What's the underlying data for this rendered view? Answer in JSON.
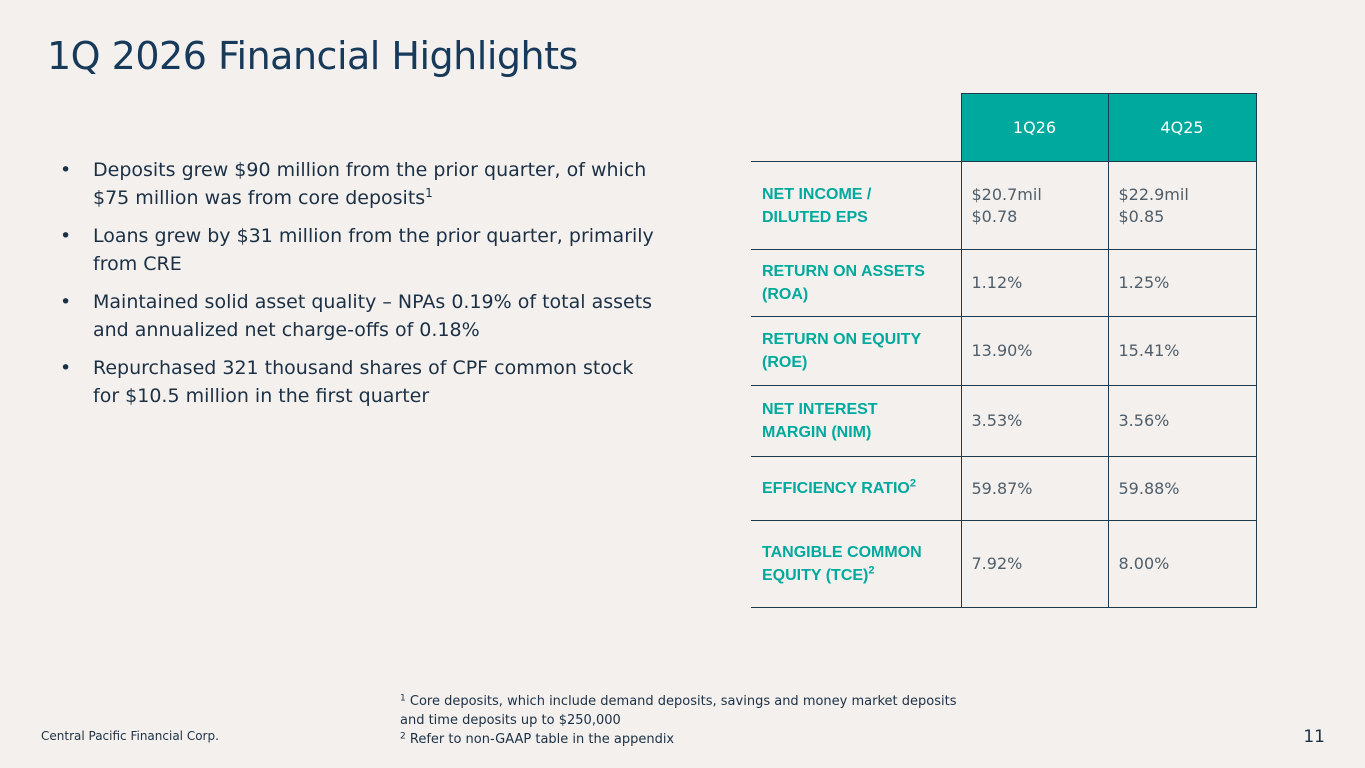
{
  "title": "1Q 2026 Financial Highlights",
  "bullets": [
    {
      "text": "Deposits grew $90 million from the prior quarter, of which $75 million was from core deposits",
      "sup": "1"
    },
    {
      "text": "Loans grew by $31 million from the prior quarter, primarily from CRE",
      "sup": ""
    },
    {
      "text": "Maintained solid asset quality – NPAs 0.19% of total assets and annualized net charge-offs of 0.18%",
      "sup": ""
    },
    {
      "text": "Repurchased 321 thousand shares of CPF common stock for $10.5 million in the first quarter",
      "sup": ""
    }
  ],
  "bullet_symbol": "•",
  "table": {
    "headers": [
      "1Q26",
      "4Q25"
    ],
    "rows": [
      {
        "label_line1": "NET INCOME /",
        "label_line2": "DILUTED EPS",
        "label_sup": "",
        "v1_line1": "$20.7mil",
        "v1_line2": "$0.78",
        "v2_line1": "$22.9mil",
        "v2_line2": "$0.85"
      },
      {
        "label_line1": "RETURN ON ASSETS",
        "label_line2": "(ROA)",
        "label_sup": "",
        "v1_line1": "1.12%",
        "v1_line2": "",
        "v2_line1": "1.25%",
        "v2_line2": ""
      },
      {
        "label_line1": "RETURN ON EQUITY",
        "label_line2": "(ROE)",
        "label_sup": "",
        "v1_line1": "13.90%",
        "v1_line2": "",
        "v2_line1": "15.41%",
        "v2_line2": ""
      },
      {
        "label_line1": "NET INTEREST",
        "label_line2": "MARGIN (NIM)",
        "label_sup": "",
        "v1_line1": "3.53%",
        "v1_line2": "",
        "v2_line1": "3.56%",
        "v2_line2": ""
      },
      {
        "label_line1": "EFFICIENCY RATIO",
        "label_line2": "",
        "label_sup": "2",
        "v1_line1": "59.87%",
        "v1_line2": "",
        "v2_line1": "59.88%",
        "v2_line2": ""
      },
      {
        "label_line1": "TANGIBLE COMMON",
        "label_line2": "EQUITY (TCE)",
        "label_sup": "2",
        "v1_line1": "7.92%",
        "v1_line2": "",
        "v2_line1": "8.00%",
        "v2_line2": ""
      }
    ]
  },
  "footnotes": [
    {
      "sup": "1",
      "line1": "Core deposits, which include demand deposits, savings and money market deposits",
      "line2": "and time deposits up to $250,000"
    },
    {
      "sup": "2",
      "line1": "Refer to non-GAAP table in the appendix",
      "line2": ""
    }
  ],
  "company": "Central Pacific Financial Corp.",
  "page_number": "11",
  "colors": {
    "accent": "#00a99d",
    "title": "#17395a",
    "background": "#f3f0ed",
    "border": "#1f3a4d"
  }
}
